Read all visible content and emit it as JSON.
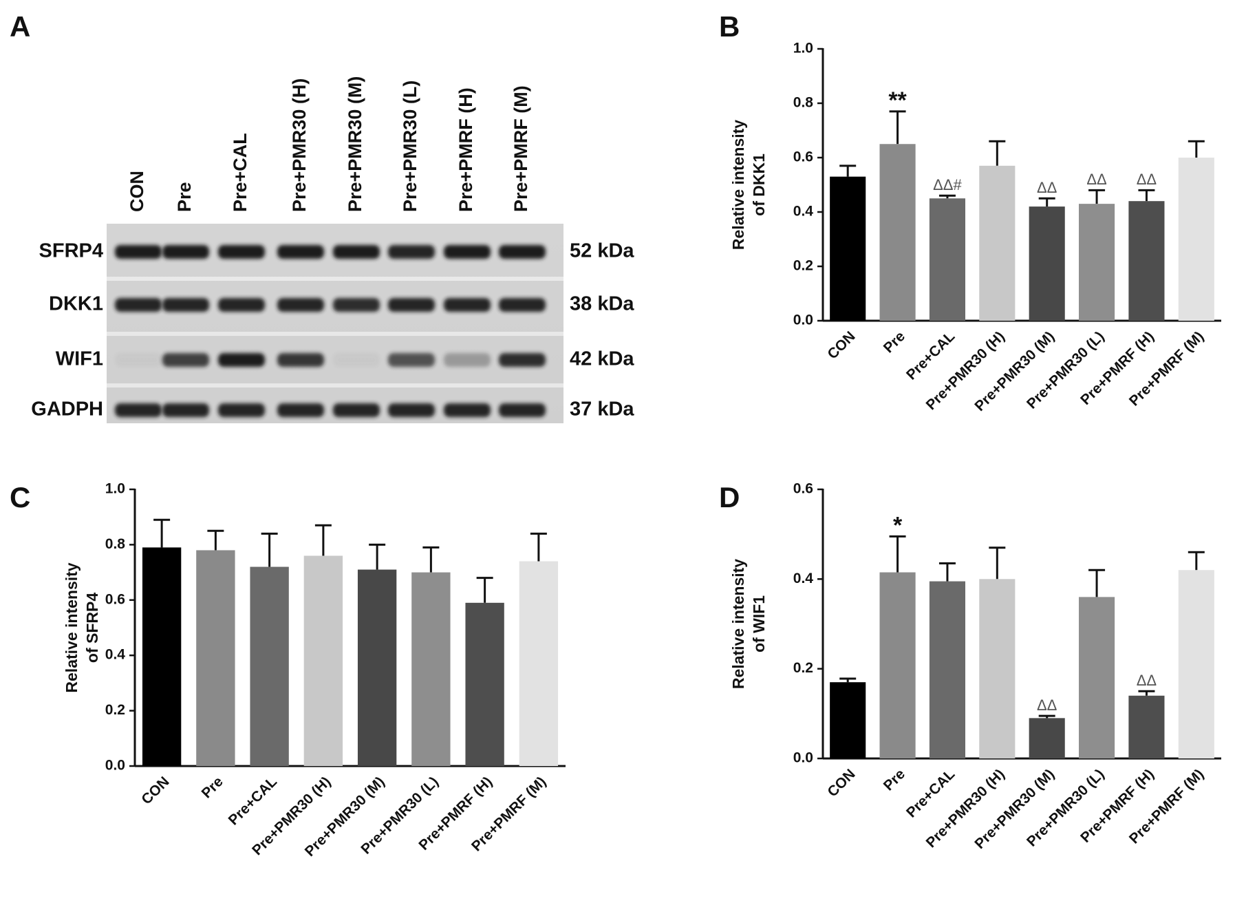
{
  "blot": {
    "panel": "A",
    "lanes": [
      "CON",
      "Pre",
      "Pre+CAL",
      "Pre+PMR30 (H)",
      "Pre+PMR30 (M)",
      "Pre+PMR30 (L)",
      "Pre+PMRF (H)",
      "Pre+PMRF (M)"
    ],
    "rows": [
      {
        "name": "SFRP4",
        "size": "52 kDa"
      },
      {
        "name": "DKK1",
        "size": "38 kDa"
      },
      {
        "name": "WIF1",
        "size": "42 kDa"
      },
      {
        "name": "GADPH",
        "size": "37 kDa"
      }
    ]
  },
  "chart_data": [
    {
      "type": "bar",
      "panel": "B",
      "ylabel": [
        "Relative intensity",
        "of DKK1"
      ],
      "categories": [
        "CON",
        "Pre",
        "Pre+CAL",
        "Pre+PMR30 (H)",
        "Pre+PMR30 (M)",
        "Pre+PMR30 (L)",
        "Pre+PMRF (H)",
        "Pre+PMRF (M)"
      ],
      "values": [
        0.53,
        0.65,
        0.45,
        0.57,
        0.42,
        0.43,
        0.44,
        0.6
      ],
      "errors": [
        0.04,
        0.12,
        0.01,
        0.09,
        0.03,
        0.05,
        0.04,
        0.06
      ],
      "annotations": [
        null,
        "**",
        "ΔΔ#",
        null,
        "ΔΔ",
        "ΔΔ",
        "ΔΔ",
        null
      ],
      "colors": [
        "#000000",
        "#8a8a8a",
        "#6a6a6a",
        "#c8c8c8",
        "#484848",
        "#8e8e8e",
        "#4e4e4e",
        "#e2e2e2"
      ],
      "ylim": [
        0,
        1
      ],
      "yticks": [
        {
          "value": 0,
          "label": "0.0"
        },
        0.2,
        0.4,
        0.6,
        0.8,
        {
          "value": 1,
          "label": "1.0"
        }
      ]
    },
    {
      "type": "bar",
      "panel": "C",
      "ylabel": [
        "Relative intensity",
        "of SFRP4"
      ],
      "categories": [
        "CON",
        "Pre",
        "Pre+CAL",
        "Pre+PMR30 (H)",
        "Pre+PMR30 (M)",
        "Pre+PMR30 (L)",
        "Pre+PMRF (H)",
        "Pre+PMRF (M)"
      ],
      "values": [
        0.79,
        0.78,
        0.72,
        0.76,
        0.71,
        0.7,
        0.59,
        0.74
      ],
      "errors": [
        0.1,
        0.07,
        0.12,
        0.11,
        0.09,
        0.09,
        0.09,
        0.1
      ],
      "colors": [
        "#000000",
        "#8a8a8a",
        "#6a6a6a",
        "#c8c8c8",
        "#484848",
        "#8e8e8e",
        "#4e4e4e",
        "#e2e2e2"
      ],
      "ylim": [
        0,
        1
      ],
      "yticks": [
        {
          "value": 0,
          "label": "0.0"
        },
        0.2,
        0.4,
        0.6,
        0.8,
        {
          "value": 1,
          "label": "1.0"
        }
      ]
    },
    {
      "type": "bar",
      "panel": "D",
      "ylabel": [
        "Relative intensity",
        "of WIF1"
      ],
      "categories": [
        "CON",
        "Pre",
        "Pre+CAL",
        "Pre+PMR30 (H)",
        "Pre+PMR30 (M)",
        "Pre+PMR30 (L)",
        "Pre+PMRF (H)",
        "Pre+PMRF (M)"
      ],
      "values": [
        0.17,
        0.415,
        0.395,
        0.4,
        0.09,
        0.36,
        0.14,
        0.42
      ],
      "errors": [
        0.008,
        0.08,
        0.04,
        0.07,
        0.005,
        0.06,
        0.01,
        0.04
      ],
      "annotations": [
        null,
        "*",
        null,
        null,
        "ΔΔ",
        null,
        "ΔΔ",
        null
      ],
      "colors": [
        "#000000",
        "#8a8a8a",
        "#6a6a6a",
        "#c8c8c8",
        "#484848",
        "#8e8e8e",
        "#4e4e4e",
        "#e2e2e2"
      ],
      "ylim": [
        0,
        0.6
      ],
      "yticks": [
        {
          "value": 0,
          "label": "0.0"
        },
        0.2,
        0.4,
        0.6
      ]
    }
  ]
}
